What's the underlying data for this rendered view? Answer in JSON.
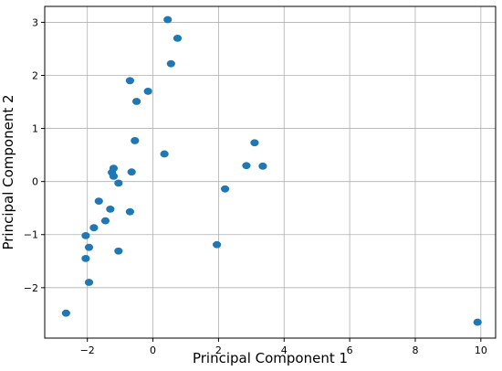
{
  "chart_data": {
    "type": "scatter",
    "title": "",
    "xlabel": "Principal Component 1",
    "ylabel": "Principal Component 2",
    "xlim": [
      -3.3,
      10.45
    ],
    "ylim": [
      -2.95,
      3.3
    ],
    "x_ticks": [
      -2,
      0,
      2,
      4,
      6,
      8,
      10
    ],
    "y_ticks": [
      -2,
      -1,
      0,
      1,
      2,
      3
    ],
    "grid": true,
    "point_color": "#1f77b4",
    "series": [
      {
        "points": [
          [
            0.45,
            3.05
          ],
          [
            0.75,
            2.7
          ],
          [
            0.55,
            2.22
          ],
          [
            -0.7,
            1.9
          ],
          [
            -0.15,
            1.7
          ],
          [
            -0.5,
            1.51
          ],
          [
            -0.55,
            0.77
          ],
          [
            0.35,
            0.52
          ],
          [
            -1.2,
            0.25
          ],
          [
            -1.25,
            0.17
          ],
          [
            -1.2,
            0.1
          ],
          [
            -0.65,
            0.18
          ],
          [
            -1.05,
            -0.03
          ],
          [
            -1.65,
            -0.37
          ],
          [
            -1.3,
            -0.52
          ],
          [
            -0.7,
            -0.57
          ],
          [
            -1.45,
            -0.74
          ],
          [
            -1.8,
            -0.87
          ],
          [
            -2.05,
            -1.02
          ],
          [
            -1.95,
            -1.24
          ],
          [
            -2.05,
            -1.45
          ],
          [
            -1.05,
            -1.31
          ],
          [
            -1.95,
            -1.9
          ],
          [
            -2.65,
            -2.48
          ],
          [
            3.1,
            0.73
          ],
          [
            2.85,
            0.3
          ],
          [
            3.35,
            0.29
          ],
          [
            2.2,
            -0.14
          ],
          [
            1.95,
            -1.19
          ],
          [
            9.9,
            -2.65
          ]
        ]
      }
    ]
  }
}
